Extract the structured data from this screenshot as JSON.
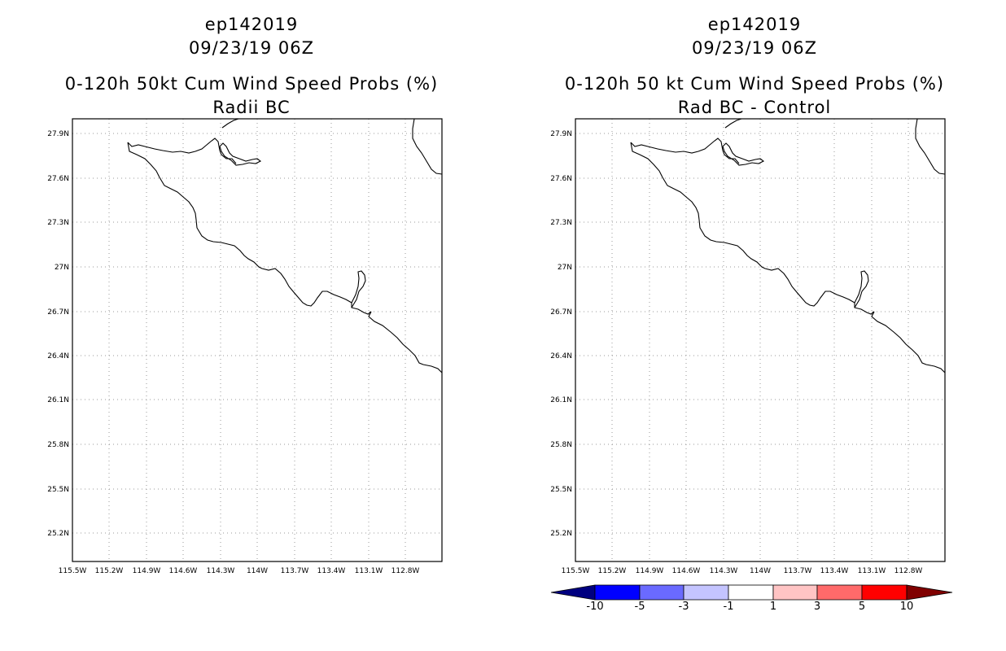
{
  "panels": [
    {
      "storm_id": "ep142019",
      "date": "09/23/19 06Z",
      "title": "0-120h 50kt Cum Wind Speed Probs (%)",
      "subtitle": "Radii BC"
    },
    {
      "storm_id": "ep142019",
      "date": "09/23/19 06Z",
      "title": "0-120h 50 kt Cum Wind Speed Probs (%)",
      "subtitle": "Rad BC - Control"
    }
  ],
  "axes": {
    "lat_labels": [
      "27.9N",
      "27.6N",
      "27.3N",
      "27N",
      "26.7N",
      "26.4N",
      "26.1N",
      "25.8N",
      "25.5N",
      "25.2N"
    ],
    "lon_labels": [
      "115.5W",
      "115.2W",
      "114.9W",
      "114.6W",
      "114.3W",
      "114W",
      "113.7W",
      "113.4W",
      "113.1W",
      "112.8W"
    ]
  },
  "colorbar": {
    "labels": [
      "-10",
      "-5",
      "-3",
      "-1",
      "1",
      "3",
      "5",
      "10"
    ],
    "colors": [
      "#000080",
      "#0000ff",
      "#6a6aff",
      "#c4c4ff",
      "#ffffff",
      "#ffc4c4",
      "#ff6a6a",
      "#ff0000",
      "#800000"
    ]
  }
}
